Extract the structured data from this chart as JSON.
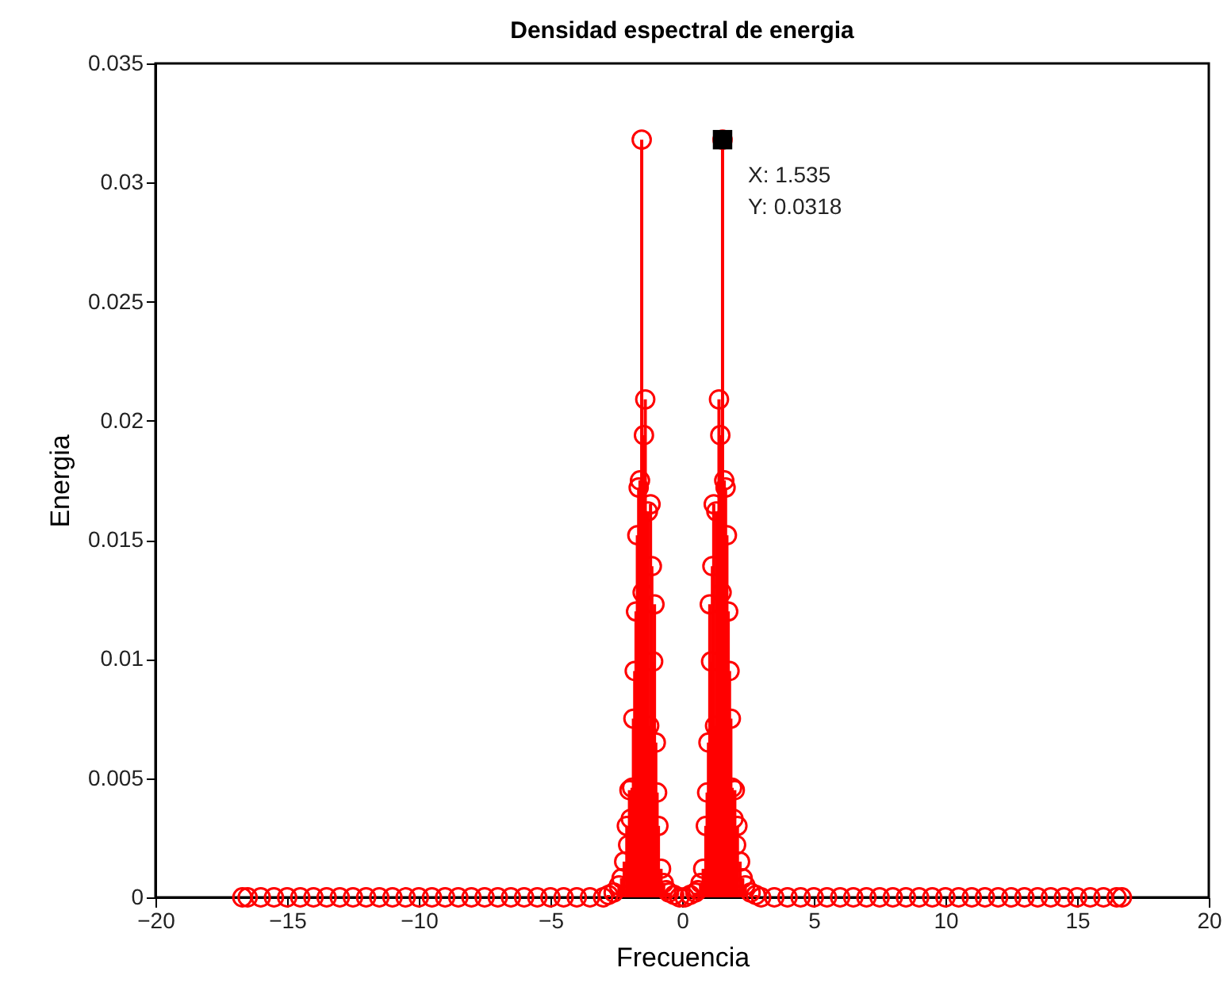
{
  "chart_data": {
    "type": "lollipop",
    "title": "Densidad espectral de energia",
    "xlabel": "Frecuencia",
    "ylabel": "Energia",
    "x": [
      -16.7,
      -16.5,
      -16,
      -15.5,
      -15,
      -14.5,
      -14,
      -13.5,
      -13,
      -12.5,
      -12,
      -11.5,
      -11,
      -10.5,
      -10,
      -9.5,
      -9,
      -8.5,
      -8,
      -7.5,
      -7,
      -6.5,
      -6,
      -5.5,
      -5,
      -4.5,
      -4,
      -3.5,
      -3,
      -2.8,
      -2.6,
      -2.4,
      -2.3,
      -2.2,
      -2.1,
      -2.05,
      -2.0,
      -1.95,
      -1.9,
      -1.85,
      -1.8,
      -1.75,
      -1.7,
      -1.65,
      -1.6,
      -1.535,
      -1.5,
      -1.45,
      -1.4,
      -1.3,
      -1.25,
      -1.2,
      -1.15,
      -1.1,
      -1.05,
      -1.0,
      -0.95,
      -0.9,
      -0.8,
      -0.7,
      -0.6,
      -0.5,
      -0.3,
      -0.1,
      0.1,
      0.3,
      0.5,
      0.6,
      0.7,
      0.8,
      0.9,
      0.95,
      1.0,
      1.05,
      1.1,
      1.15,
      1.2,
      1.25,
      1.3,
      1.4,
      1.45,
      1.5,
      1.535,
      1.6,
      1.65,
      1.7,
      1.75,
      1.8,
      1.85,
      1.9,
      1.95,
      2.0,
      2.05,
      2.1,
      2.2,
      2.3,
      2.4,
      2.6,
      2.8,
      3,
      3.5,
      4,
      4.5,
      5,
      5.5,
      6,
      6.5,
      7,
      7.5,
      8,
      8.5,
      9,
      9.5,
      10,
      10.5,
      11,
      11.5,
      12,
      12.5,
      13,
      13.5,
      14,
      14.5,
      15,
      15.5,
      16,
      16.5,
      16.7
    ],
    "series": [
      {
        "color": "#ff0000",
        "values": [
          0,
          0,
          0,
          0,
          0,
          0,
          0,
          0,
          0,
          0,
          0,
          0,
          0,
          0,
          0,
          0,
          0,
          0,
          0,
          0,
          0,
          0,
          0,
          0,
          0,
          0,
          0,
          0,
          0,
          0.0001,
          0.0002,
          0.0005,
          0.0008,
          0.0015,
          0.003,
          0.0022,
          0.0045,
          0.0033,
          0.0046,
          0.0075,
          0.0095,
          0.012,
          0.0152,
          0.0172,
          0.0175,
          0.0318,
          0.0128,
          0.0194,
          0.0209,
          0.0162,
          0.0072,
          0.0165,
          0.0139,
          0.0099,
          0.0123,
          0.0065,
          0.0044,
          0.003,
          0.0012,
          0.0006,
          0.0003,
          0.0002,
          0.0001,
          0,
          0,
          0.0001,
          0.0002,
          0.0003,
          0.0006,
          0.0012,
          0.003,
          0.0044,
          0.0065,
          0.0123,
          0.0099,
          0.0139,
          0.0165,
          0.0072,
          0.0162,
          0.0209,
          0.0194,
          0.0128,
          0.0318,
          0.0175,
          0.0172,
          0.0152,
          0.012,
          0.0095,
          0.0075,
          0.0046,
          0.0033,
          0.0045,
          0.0022,
          0.003,
          0.0015,
          0.0008,
          0.0005,
          0.0002,
          0.0001,
          0,
          0,
          0,
          0,
          0,
          0,
          0,
          0,
          0,
          0,
          0,
          0,
          0,
          0,
          0,
          0,
          0,
          0,
          0,
          0,
          0,
          0,
          0,
          0,
          0,
          0,
          0,
          0,
          0
        ]
      }
    ],
    "xlim": [
      -20,
      20
    ],
    "xticks": [
      -20,
      -15,
      -10,
      -5,
      0,
      5,
      10,
      15,
      20
    ],
    "ylim": [
      0,
      0.035
    ],
    "yticks": [
      0,
      0.005,
      0.01,
      0.015,
      0.02,
      0.025,
      0.03,
      0.035
    ],
    "marker": "circle",
    "annotations": [
      {
        "text": "X: 1.535\nY: 0.0318",
        "x": 1.535,
        "y": 0.0318
      }
    ]
  }
}
